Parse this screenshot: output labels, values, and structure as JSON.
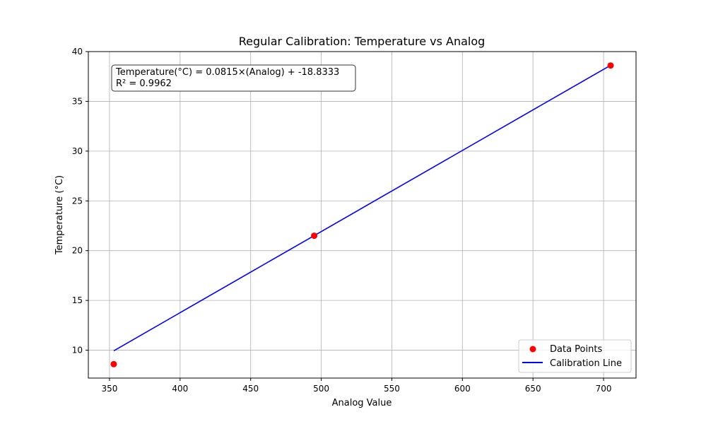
{
  "chart_data": {
    "type": "scatter",
    "title": "Regular Calibration: Temperature vs Analog",
    "xlabel": "Analog Value",
    "ylabel": "Temperature (°C)",
    "xlim": [
      335,
      723
    ],
    "ylim": [
      7.2,
      40
    ],
    "xticks": [
      350,
      400,
      450,
      500,
      550,
      600,
      650,
      700
    ],
    "yticks": [
      10,
      15,
      20,
      25,
      30,
      35,
      40
    ],
    "grid": true,
    "legend_position": "lower-right",
    "series": [
      {
        "name": "Data Points",
        "kind": "scatter",
        "color": "#ff0000",
        "x": [
          353,
          495,
          705
        ],
        "y": [
          8.6,
          21.5,
          38.6
        ]
      },
      {
        "name": "Calibration Line",
        "kind": "line",
        "color": "#0000ff",
        "x": [
          353,
          495,
          705
        ],
        "y": [
          9.94,
          21.51,
          38.62
        ]
      }
    ],
    "annotation": {
      "line1": "Temperature(°C) = 0.0815×(Analog) + -18.8333",
      "line2": "R² = 0.9962"
    }
  }
}
